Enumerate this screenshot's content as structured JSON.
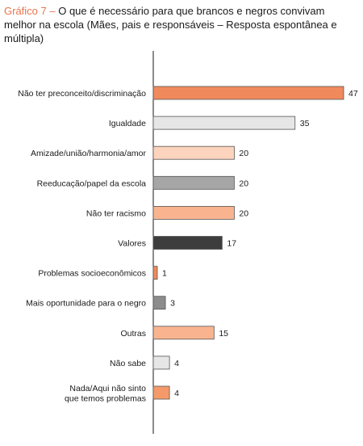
{
  "title": {
    "prefix": "Gráfico 7 –",
    "text": "O que é necessário para que brancos e negros convivam melhor na escola (Mães, pais e responsáveis – Resposta espontânea e múltipla)"
  },
  "chart_data": {
    "type": "bar",
    "orientation": "horizontal",
    "grid": false,
    "categories": [
      "Não ter preconceito/discriminação",
      "Igualdade",
      "Amizade/união/harmonia/amor",
      "Reeducação/papel da escola",
      "Não ter racismo",
      "Valores",
      "Problemas socioeconômicos",
      "Mais oportunidade para o negro",
      "Outras",
      "Não sabe",
      "Nada/Aqui não sinto\nque temos problemas"
    ],
    "values": [
      47,
      35,
      20,
      20,
      20,
      17,
      1,
      3,
      15,
      4,
      4
    ],
    "colors": [
      "#f08a5d",
      "#e6e6e6",
      "#fcd3bc",
      "#a6a6a6",
      "#f9b48f",
      "#3d3d3d",
      "#f08a5d",
      "#8c8c8c",
      "#f9b48f",
      "#e6e6e6",
      "#f49a6a"
    ],
    "xlim": [
      0,
      50
    ]
  }
}
